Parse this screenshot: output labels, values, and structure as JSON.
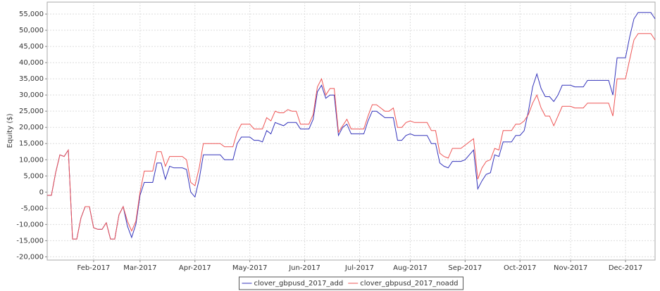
{
  "chart_data": {
    "type": "line",
    "ylabel": "Equity ($)",
    "categories": [
      null,
      null,
      null,
      null,
      null,
      null,
      null,
      null,
      null,
      null,
      null,
      "Feb-2017",
      null,
      null,
      null,
      null,
      null,
      null,
      null,
      null,
      null,
      null,
      "Mar-2017",
      null,
      null,
      null,
      null,
      null,
      null,
      null,
      null,
      null,
      null,
      null,
      null,
      "Apr-2017",
      null,
      null,
      null,
      null,
      null,
      null,
      null,
      null,
      null,
      null,
      null,
      null,
      "May-2017",
      null,
      null,
      null,
      null,
      null,
      null,
      null,
      null,
      null,
      null,
      null,
      null,
      "Jun-2017",
      null,
      null,
      null,
      null,
      null,
      null,
      null,
      null,
      null,
      null,
      null,
      null,
      "Jul-2017",
      null,
      null,
      null,
      null,
      null,
      null,
      null,
      null,
      null,
      null,
      null,
      "Aug-2017",
      null,
      null,
      null,
      null,
      null,
      null,
      null,
      null,
      null,
      null,
      null,
      null,
      "Sep-2017",
      null,
      null,
      null,
      null,
      null,
      null,
      null,
      null,
      null,
      null,
      null,
      null,
      "Oct-2017",
      null,
      null,
      null,
      null,
      null,
      null,
      null,
      null,
      null,
      null,
      null,
      "Nov-2017",
      null,
      null,
      null,
      null,
      null,
      null,
      null,
      null,
      null,
      null,
      null,
      null,
      "Dec-2017",
      null,
      null,
      null,
      null,
      null,
      null,
      null
    ],
    "series": [
      {
        "name": "clover_gbpusd_2017_add",
        "color": "#3333bb",
        "values": [
          -1000,
          -1000,
          6000,
          11500,
          11000,
          13000,
          -14500,
          -14500,
          -8000,
          -4500,
          -4500,
          -11000,
          -11500,
          -11500,
          -9500,
          -14500,
          -14500,
          -7000,
          -4500,
          -10500,
          -14000,
          -10000,
          -1000,
          3000,
          3000,
          3000,
          9000,
          9000,
          4000,
          8000,
          7500,
          7500,
          7500,
          7000,
          0,
          -1500,
          4000,
          11500,
          11500,
          11500,
          11500,
          11500,
          10000,
          10000,
          10000,
          15000,
          17000,
          17000,
          17000,
          16000,
          16000,
          15500,
          19000,
          18000,
          21500,
          21000,
          20500,
          21500,
          21500,
          21500,
          19500,
          19500,
          19500,
          22500,
          31000,
          33000,
          29000,
          30000,
          30000,
          17500,
          20000,
          21000,
          18000,
          18000,
          18000,
          18000,
          22000,
          25000,
          25000,
          24000,
          23000,
          23000,
          23000,
          16000,
          16000,
          17500,
          18000,
          17500,
          17500,
          17500,
          17500,
          15000,
          15000,
          9000,
          8000,
          7500,
          9500,
          9500,
          9500,
          10000,
          11500,
          13000,
          1000,
          3500,
          5500,
          6000,
          11500,
          11000,
          15500,
          15500,
          15500,
          17500,
          17500,
          19000,
          25000,
          32500,
          36500,
          32000,
          29500,
          29500,
          28000,
          30000,
          33000,
          33000,
          33000,
          32500,
          32500,
          32500,
          34500,
          34500,
          34500,
          34500,
          34500,
          34500,
          30000,
          41500,
          41500,
          41500,
          48000,
          53500,
          55500,
          55500,
          55500,
          55500,
          53500
        ]
      },
      {
        "name": "clover_gbpusd_2017_noadd",
        "color": "#ee5555",
        "values": [
          -1000,
          -1000,
          6000,
          11500,
          11000,
          13000,
          -14500,
          -14500,
          -8000,
          -4500,
          -4500,
          -11000,
          -11500,
          -11500,
          -9500,
          -14500,
          -14500,
          -7000,
          -4500,
          -9000,
          -12000,
          -9000,
          0,
          6500,
          6500,
          6500,
          12500,
          12500,
          8000,
          11000,
          11000,
          11000,
          11000,
          10000,
          3000,
          2000,
          7500,
          15000,
          15000,
          15000,
          15000,
          15000,
          14000,
          14000,
          14000,
          18500,
          21000,
          21000,
          21000,
          19500,
          19500,
          19500,
          23000,
          22000,
          25000,
          24500,
          24500,
          25500,
          25000,
          25000,
          21000,
          21000,
          21000,
          24000,
          32500,
          35000,
          30000,
          32000,
          32000,
          18500,
          20500,
          22500,
          19500,
          19500,
          19500,
          19500,
          23500,
          27000,
          27000,
          26000,
          25000,
          25000,
          26000,
          20000,
          20000,
          21500,
          22000,
          21500,
          21500,
          21500,
          21500,
          19000,
          19000,
          12000,
          11000,
          10500,
          13500,
          13500,
          13500,
          14500,
          15500,
          16500,
          4000,
          7500,
          9500,
          10000,
          13500,
          13000,
          19000,
          19000,
          19000,
          21000,
          21000,
          22000,
          24000,
          27500,
          30000,
          26000,
          23500,
          23500,
          20500,
          23500,
          26500,
          26500,
          26500,
          26000,
          26000,
          26000,
          27500,
          27500,
          27500,
          27500,
          27500,
          27500,
          23500,
          35000,
          35000,
          35000,
          41000,
          47000,
          49000,
          49000,
          49000,
          49000,
          47000
        ]
      }
    ],
    "ylim": [
      -21000,
      58700
    ],
    "yticks": [
      {
        "value": -20000,
        "label": "-20,000"
      },
      {
        "value": -15000,
        "label": "-15,000"
      },
      {
        "value": -10000,
        "label": "-10,000"
      },
      {
        "value": -5000,
        "label": "-5,000"
      },
      0,
      {
        "value": 5000,
        "label": "5,000"
      },
      {
        "value": 10000,
        "label": "10,000"
      },
      {
        "value": 15000,
        "label": "15,000"
      },
      {
        "value": 20000,
        "label": "20,000"
      },
      {
        "value": 25000,
        "label": "25,000"
      },
      {
        "value": 30000,
        "label": "30,000"
      },
      {
        "value": 35000,
        "label": "35,000"
      },
      {
        "value": 40000,
        "label": "40,000"
      },
      {
        "value": 45000,
        "label": "45,000"
      },
      {
        "value": 50000,
        "label": "50,000"
      },
      {
        "value": 55000,
        "label": "55,000"
      }
    ],
    "grid": true,
    "legend": "bottom"
  }
}
